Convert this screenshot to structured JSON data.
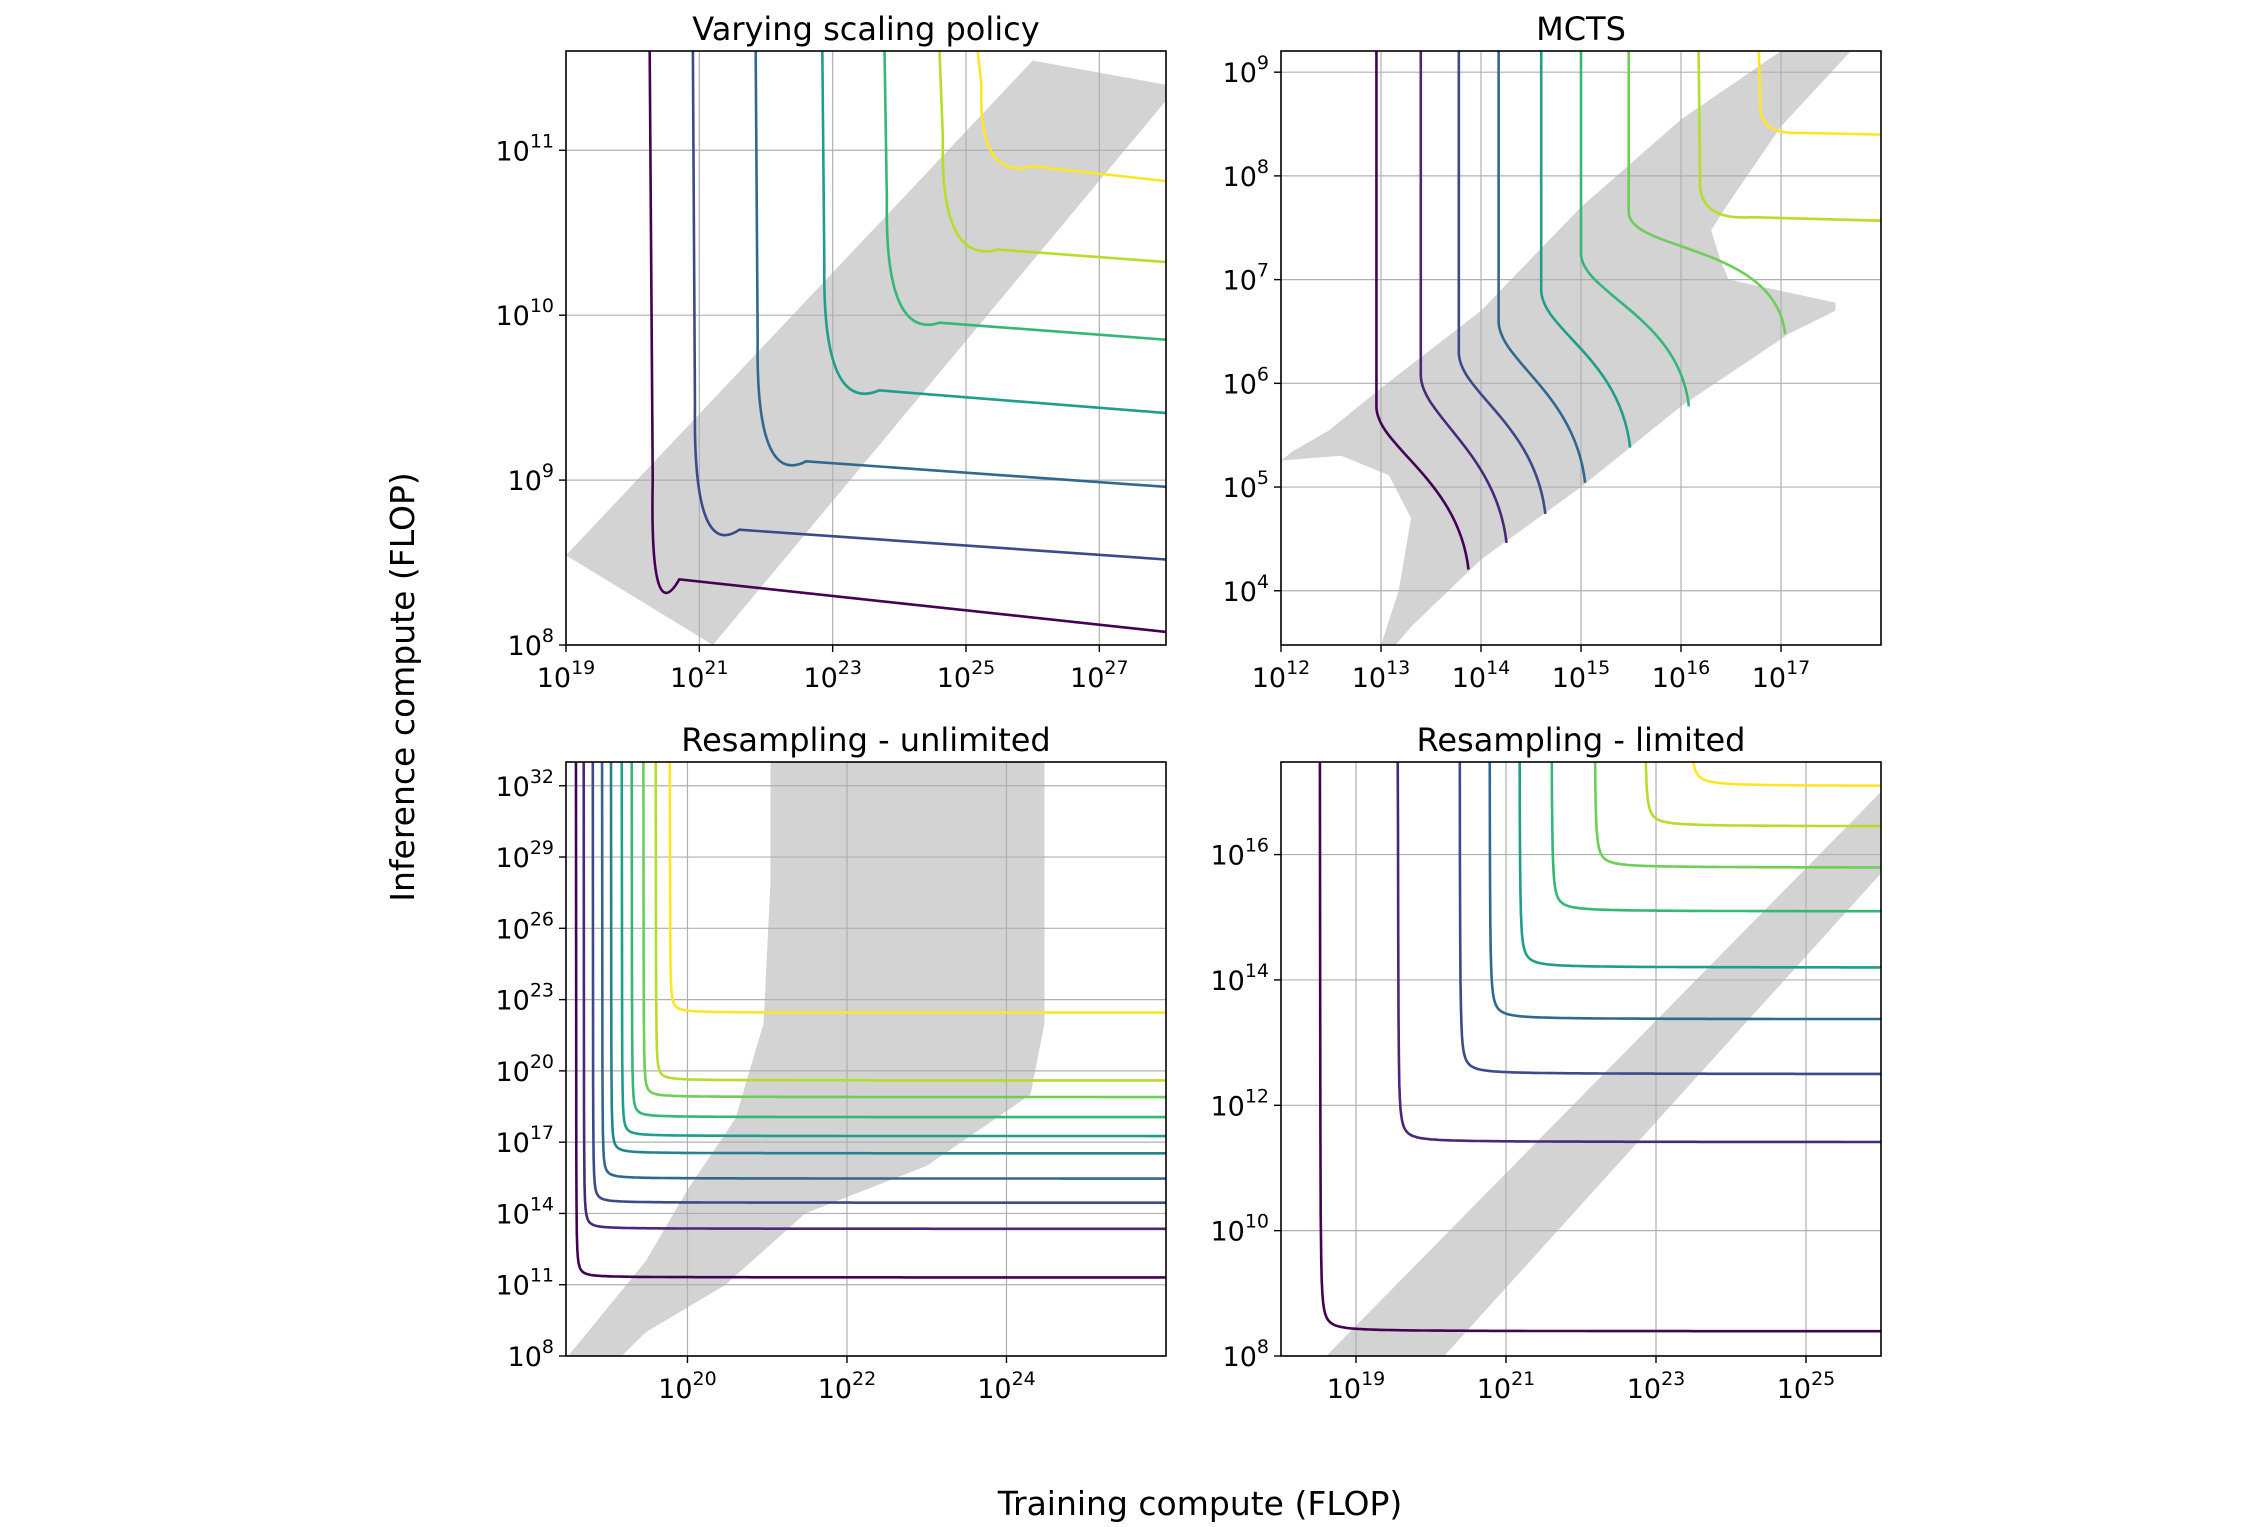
{
  "figure": {
    "xlabel": "Training compute (FLOP)",
    "ylabel": "Inference compute (FLOP)"
  },
  "colors": {
    "band": "#d3d3d3",
    "grid": "#b0b0b0",
    "axis": "#000000",
    "viridis": [
      "#440154",
      "#482878",
      "#3e4989",
      "#31688e",
      "#26828e",
      "#1f9e89",
      "#35b779",
      "#6ece58",
      "#b5de2b",
      "#fde725"
    ]
  },
  "chart_data": [
    {
      "type": "line",
      "title": "Varying scaling policy",
      "xscale": "log",
      "yscale": "log",
      "xlim": [
        1e+19,
        1e+28
      ],
      "ylim": [
        100000000.0,
        400000000000.0
      ],
      "xticks": [
        {
          "exp": "19",
          "v": 1e+19
        },
        {
          "exp": "21",
          "v": 1e+21
        },
        {
          "exp": "23",
          "v": 1e+23
        },
        {
          "exp": "25",
          "v": 1e+25
        },
        {
          "exp": "27",
          "v": 1e+27
        }
      ],
      "yticks": [
        {
          "exp": "8",
          "v": 100000000.0
        },
        {
          "exp": "9",
          "v": 1000000000.0
        },
        {
          "exp": "10",
          "v": 10000000000.0
        },
        {
          "exp": "11",
          "v": 100000000000.0
        }
      ],
      "band": {
        "shape": "diag",
        "points": [
          [
            1e+19,
            350000000.0
          ],
          [
            1e+26,
            350000000000.0
          ],
          [
            1e+28,
            250000000000.0
          ],
          [
            1e+28,
            200000000000.0
          ],
          [
            1.6e+21,
            100000000.0
          ]
        ]
      },
      "series": [
        {
          "name": "contour 1",
          "type": "corner",
          "corner": [
            1.8e+20,
            120000000.0
          ],
          "knee": [
            2e+20,
            1000000000.0
          ],
          "tail": [
            5e+20,
            250000000.0
          ],
          "top": 400000000000.0,
          "right_end": 120000000.0
        },
        {
          "name": "contour 2",
          "type": "corner",
          "corner": [
            8e+20,
            320000000.0
          ],
          "knee": [
            8.6e+20,
            2800000000.0
          ],
          "tail": [
            4e+21,
            500000000.0
          ],
          "top": 400000000000.0,
          "right_end": 330000000.0
        },
        {
          "name": "contour 3",
          "type": "corner",
          "corner": [
            7e+21,
            900000000.0
          ],
          "knee": [
            7.5e+21,
            7000000000.0
          ],
          "tail": [
            4e+22,
            1300000000.0
          ],
          "top": 400000000000.0,
          "right_end": 910000000.0
        },
        {
          "name": "contour 4",
          "type": "corner",
          "corner": [
            7e+22,
            2500000000.0
          ],
          "knee": [
            7.5e+22,
            20000000000.0
          ],
          "tail": [
            5e+23,
            3500000000.0
          ],
          "top": 400000000000.0,
          "right_end": 2550000000.0
        },
        {
          "name": "contour 5",
          "type": "corner",
          "corner": [
            6e+23,
            7000000000.0
          ],
          "knee": [
            6.5e+23,
            50000000000.0
          ],
          "tail": [
            4e+24,
            9000000000.0
          ],
          "top": 400000000000.0,
          "right_end": 7100000000.0
        },
        {
          "name": "contour 6",
          "type": "corner",
          "corner": [
            4e+24,
            20000000000.0
          ],
          "knee": [
            4.5e+24,
            120000000000.0
          ],
          "tail": [
            3e+25,
            25000000000.0
          ],
          "top": 400000000000.0,
          "right_end": 21000000000.0
        },
        {
          "name": "contour 7",
          "type": "corner",
          "corner": [
            1.5e+25,
            65000000000.0
          ],
          "knee": [
            1.7e+25,
            250000000000.0
          ],
          "tail": [
            1e+26,
            80000000000.0
          ],
          "top": 400000000000.0,
          "right_end": 65000000000.0
        }
      ]
    },
    {
      "type": "line",
      "title": "MCTS",
      "xscale": "log",
      "yscale": "log",
      "xlim": [
        1000000000000.0,
        1e+18
      ],
      "ylim": [
        3000.0,
        1600000000.0
      ],
      "xticks": [
        {
          "exp": "12",
          "v": 1000000000000.0
        },
        {
          "exp": "13",
          "v": 10000000000000.0
        },
        {
          "exp": "14",
          "v": 100000000000000.0
        },
        {
          "exp": "15",
          "v": 1000000000000000.0
        },
        {
          "exp": "16",
          "v": 1e+16
        },
        {
          "exp": "17",
          "v": 1e+17
        }
      ],
      "yticks": [
        {
          "exp": "4",
          "v": 10000.0
        },
        {
          "exp": "5",
          "v": 100000.0
        },
        {
          "exp": "6",
          "v": 1000000.0
        },
        {
          "exp": "7",
          "v": 10000000.0
        },
        {
          "exp": "8",
          "v": 100000000.0
        },
        {
          "exp": "9",
          "v": 1000000000.0
        }
      ],
      "band": {
        "shape": "mcts",
        "points": [
          [
            1000000000000.0,
            180000.0
          ],
          [
            1300000000000.0,
            220000.0
          ],
          [
            3000000000000.0,
            350000.0
          ],
          [
            10000000000000.0,
            900000.0
          ],
          [
            100000000000000.0,
            5000000.0
          ],
          [
            1000000000000000.0,
            50000000.0
          ],
          [
            1e+16,
            350000000.0
          ],
          [
            1e+17,
            1600000000.0
          ],
          [
            5e+17,
            1600000000.0
          ],
          [
            1e+17,
            300000000.0
          ],
          [
            3e+16,
            55000000.0
          ],
          [
            2e+16,
            30000000.0
          ],
          [
            2.5e+16,
            15000000.0
          ],
          [
            3e+16,
            10000000.0
          ],
          [
            3.5e+17,
            6000000.0
          ],
          [
            3.5e+17,
            5000000.0
          ],
          [
            1.2e+17,
            3000000.0
          ],
          [
            1e+16,
            600000.0
          ],
          [
            1000000000000000.0,
            100000.0
          ],
          [
            100000000000000.0,
            20000.0
          ],
          [
            20000000000000.0,
            4500.0
          ],
          [
            14000000000000.0,
            3000.0
          ],
          [
            10000000000000.0,
            3000.0
          ],
          [
            15000000000000.0,
            10000.0
          ],
          [
            20000000000000.0,
            50000.0
          ],
          [
            12000000000000.0,
            130000.0
          ],
          [
            4000000000000.0,
            200000.0
          ],
          [
            2000000000000.0,
            190000.0
          ]
        ]
      },
      "series": [
        {
          "name": "contour 1",
          "type": "mcts",
          "x_top": 9000000000000.0,
          "knee_y": 600000.0,
          "end": [
            75000000000000.0,
            16000.0
          ]
        },
        {
          "name": "contour 2",
          "type": "mcts",
          "x_top": 25000000000000.0,
          "knee_y": 1200000.0,
          "end": [
            180000000000000.0,
            29000.0
          ]
        },
        {
          "name": "contour 3",
          "type": "mcts",
          "x_top": 60000000000000.0,
          "knee_y": 2000000.0,
          "end": [
            440000000000000.0,
            55000.0
          ]
        },
        {
          "name": "contour 4",
          "type": "mcts",
          "x_top": 150000000000000.0,
          "knee_y": 4000000.0,
          "end": [
            1100000000000000.0,
            110000.0
          ]
        },
        {
          "name": "contour 5",
          "type": "mcts",
          "x_top": 400000000000000.0,
          "knee_y": 8000000.0,
          "end": [
            3100000000000000.0,
            240000.0
          ]
        },
        {
          "name": "contour 6",
          "type": "mcts",
          "x_top": 1000000000000000.0,
          "knee_y": 18000000.0,
          "end": [
            1.2e+16,
            600000.0
          ]
        },
        {
          "name": "contour 7",
          "type": "mcts",
          "x_top": 3000000000000000.0,
          "knee_y": 45000000.0,
          "end": [
            1.1e+17,
            3000000.0
          ]
        },
        {
          "name": "contour 8",
          "type": "corner",
          "corner": [
            1.5e+16,
            37000000.0
          ],
          "knee": [
            1.55e+16,
            90000000.0
          ],
          "tail": [
            5e+16,
            40000000.0
          ],
          "top": 1600000000.0,
          "right_end": 37000000.0
        },
        {
          "name": "contour 9",
          "type": "corner",
          "corner": [
            6e+16,
            250000000.0
          ],
          "knee": [
            6.2e+16,
            500000000.0
          ],
          "tail": [
            1.5e+17,
            260000000.0
          ],
          "top": 1600000000.0,
          "right_end": 250000000.0
        }
      ]
    },
    {
      "type": "line",
      "title": "Resampling - unlimited",
      "xscale": "log",
      "yscale": "log",
      "xlim": [
        3e+18,
        1e+26
      ],
      "ylim": [
        100000000.0,
        1e+33
      ],
      "xticks": [
        {
          "exp": "20",
          "v": 1e+20
        },
        {
          "exp": "22",
          "v": 1e+22
        },
        {
          "exp": "24",
          "v": 1e+24
        }
      ],
      "yticks": [
        {
          "exp": "8",
          "v": 100000000.0
        },
        {
          "exp": "11",
          "v": 100000000000.0
        },
        {
          "exp": "14",
          "v": 100000000000000.0
        },
        {
          "exp": "17",
          "v": 1e+17
        },
        {
          "exp": "20",
          "v": 1e+20
        },
        {
          "exp": "23",
          "v": 1e+23
        },
        {
          "exp": "26",
          "v": 1e+26
        },
        {
          "exp": "29",
          "v": 1e+29
        },
        {
          "exp": "32",
          "v": 1e+32
        }
      ],
      "band": {
        "shape": "unlimited",
        "points": [
          [
            3.2e+18,
            100000000.0
          ],
          [
            3e+19,
            1000000000000.0
          ],
          [
            1e+20,
            1000000000000000.0
          ],
          [
            4e+20,
            1e+18
          ],
          [
            9e+20,
            1e+22
          ],
          [
            1.1e+21,
            1e+28
          ],
          [
            1.1e+21,
            1e+33
          ],
          [
            3e+24,
            1e+33
          ],
          [
            3e+24,
            1e+22
          ],
          [
            2e+24,
            1e+19
          ],
          [
            1e+23,
            1e+16
          ],
          [
            3e+21,
            100000000000000.0
          ],
          [
            3e+20,
            100000000000.0
          ],
          [
            3e+19,
            1000000000.0
          ],
          [
            1.5e+19,
            100000000.0
          ]
        ]
      },
      "series": [
        {
          "name": "contour 1",
          "type": "hyper",
          "x_asym": 4e+18,
          "y_asym": 180000000000.0,
          "top": 1e+33
        },
        {
          "name": "contour 2",
          "type": "hyper",
          "x_asym": 5e+18,
          "y_asym": 20000000000000.0,
          "top": 1e+33
        },
        {
          "name": "contour 3",
          "type": "hyper",
          "x_asym": 6.5e+18,
          "y_asym": 250000000000000.0,
          "top": 1e+33
        },
        {
          "name": "contour 4",
          "type": "hyper",
          "x_asym": 8.5e+18,
          "y_asym": 2600000000000000.0,
          "top": 1e+33
        },
        {
          "name": "contour 5",
          "type": "hyper",
          "x_asym": 1.1e+19,
          "y_asym": 3e+16,
          "top": 1e+33
        },
        {
          "name": "contour 6",
          "type": "hyper",
          "x_asym": 1.5e+19,
          "y_asym": 1.6e+17,
          "top": 1e+33
        },
        {
          "name": "contour 7",
          "type": "hyper",
          "x_asym": 2e+19,
          "y_asym": 1e+18,
          "top": 1e+33
        },
        {
          "name": "contour 8",
          "type": "hyper",
          "x_asym": 2.8e+19,
          "y_asym": 7e+18,
          "top": 1e+33
        },
        {
          "name": "contour 9",
          "type": "hyper",
          "x_asym": 4e+19,
          "y_asym": 3.5e+19,
          "top": 1e+33
        },
        {
          "name": "contour 10",
          "type": "hyper",
          "x_asym": 6e+19,
          "y_asym": 2.5e+22,
          "top": 1e+33
        }
      ]
    },
    {
      "type": "line",
      "title": "Resampling - limited",
      "xscale": "log",
      "yscale": "log",
      "xlim": [
        1e+18,
        1e+26
      ],
      "ylim": [
        100000000.0,
        3e+17
      ],
      "xticks": [
        {
          "exp": "19",
          "v": 1e+19
        },
        {
          "exp": "21",
          "v": 1e+21
        },
        {
          "exp": "23",
          "v": 1e+23
        },
        {
          "exp": "25",
          "v": 1e+25
        }
      ],
      "yticks": [
        {
          "exp": "8",
          "v": 100000000.0
        },
        {
          "exp": "10",
          "v": 10000000000.0
        },
        {
          "exp": "12",
          "v": 1000000000000.0
        },
        {
          "exp": "14",
          "v": 100000000000000.0
        },
        {
          "exp": "16",
          "v": 1e+16
        }
      ],
      "band": {
        "shape": "diag",
        "points": [
          [
            4e+18,
            100000000.0
          ],
          [
            1e+26,
            1e+17
          ],
          [
            1e+26,
            5000000000000000.0
          ],
          [
            1.5e+20,
            100000000.0
          ]
        ]
      },
      "series": [
        {
          "name": "contour 1",
          "type": "hyper",
          "x_asym": 3.3e+18,
          "y_asym": 220000000.0,
          "top": 3e+17
        },
        {
          "name": "contour 2",
          "type": "hyper",
          "x_asym": 3.6e+19,
          "y_asym": 230000000000.0,
          "top": 3e+17
        },
        {
          "name": "contour 3",
          "type": "hyper",
          "x_asym": 2.4e+20,
          "y_asym": 2800000000000.0,
          "top": 3e+17
        },
        {
          "name": "contour 4",
          "type": "hyper",
          "x_asym": 6e+20,
          "y_asym": 21000000000000.0,
          "top": 3e+17
        },
        {
          "name": "contour 5",
          "type": "hyper",
          "x_asym": 1.5e+21,
          "y_asym": 140000000000000.0,
          "top": 3e+17
        },
        {
          "name": "contour 6",
          "type": "hyper",
          "x_asym": 4e+21,
          "y_asym": 1100000000000000.0,
          "top": 3e+17
        },
        {
          "name": "contour 7",
          "type": "hyper",
          "x_asym": 1.5e+22,
          "y_asym": 5500000000000000.0,
          "top": 3e+17
        },
        {
          "name": "contour 8",
          "type": "hyper",
          "x_asym": 7e+22,
          "y_asym": 2.5e+16,
          "top": 3e+17
        },
        {
          "name": "contour 9",
          "type": "hyper",
          "x_asym": 2.8e+23,
          "y_asym": 1.1e+17,
          "top": 3e+17
        }
      ]
    }
  ]
}
